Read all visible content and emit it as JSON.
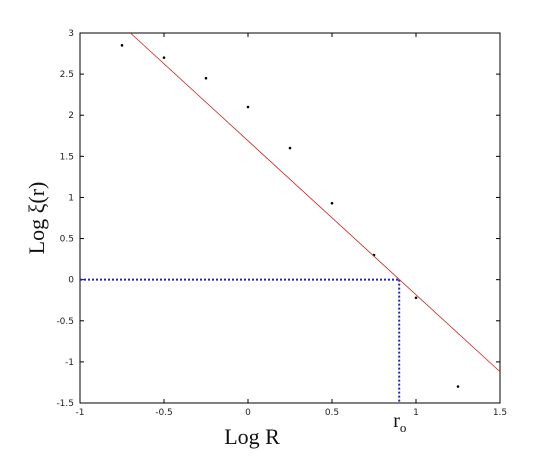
{
  "chart_data": {
    "type": "scatter",
    "x_label": "Log R",
    "y_label": "Log ξ(r)",
    "xlim": [
      -1,
      1.5
    ],
    "xticks": [
      -1,
      -0.5,
      0,
      0.5,
      1,
      1.5
    ],
    "ylim": [
      -1.5,
      3
    ],
    "yticks": [
      -1.5,
      -1,
      -0.5,
      0,
      0.5,
      1,
      1.5,
      2,
      2.5,
      3
    ],
    "grid": false,
    "series": [
      {
        "type": "scatter",
        "color": "#000000",
        "x": [
          -0.75,
          -0.5,
          -0.25,
          0,
          0.25,
          0.5,
          0.75,
          1.0,
          1.25
        ],
        "values": [
          2.85,
          2.7,
          2.45,
          2.1,
          1.6,
          0.93,
          0.3,
          -0.22,
          -1.3
        ]
      },
      {
        "type": "line",
        "color": "#cc2222",
        "x": [
          -0.7,
          1.5
        ],
        "values": [
          3,
          -1.12
        ]
      }
    ],
    "reference": {
      "x": 0.9,
      "y": 0,
      "color": "#1a2aa8",
      "label": "r",
      "label_subscript": "o"
    }
  }
}
